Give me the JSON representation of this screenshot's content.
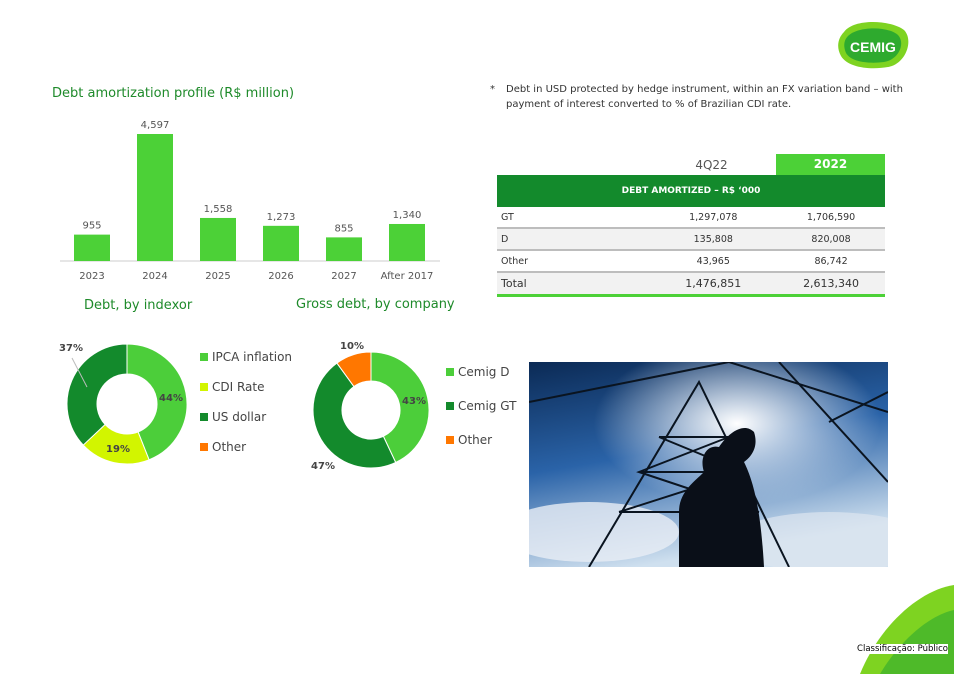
{
  "logo": {
    "text": "CEMIG"
  },
  "footnote": {
    "star": "*",
    "text": "Debt in USD protected by hedge instrument, within an FX variation band – with payment of interest converted to % of Brazilian CDI rate."
  },
  "classification": "Classificação: Público",
  "chart_data": [
    {
      "type": "bar",
      "title": "Debt amortization profile (R$ million)",
      "categories": [
        "2023",
        "2024",
        "2025",
        "2026",
        "2027",
        "After 2017"
      ],
      "values": [
        955,
        4597,
        1558,
        1273,
        855,
        1340
      ],
      "labels": [
        "955",
        "4,597",
        "1,558",
        "1,273",
        "855",
        "1,340"
      ],
      "color": "#4cd137"
    },
    {
      "type": "pie",
      "title": "Debt, by indexor",
      "donut": true,
      "slices": [
        {
          "name": "IPCA inflation",
          "value": 44,
          "color": "#4cce3a"
        },
        {
          "name": "CDI Rate",
          "value": 19,
          "color": "#d2f500"
        },
        {
          "name": "US dollar",
          "value": 37,
          "color": "#138a2c"
        },
        {
          "name": "Other",
          "value": 0,
          "color": "#ff7700"
        }
      ]
    },
    {
      "type": "pie",
      "title": "Gross debt, by company",
      "donut": true,
      "slices": [
        {
          "name": "Cemig D",
          "value": 43,
          "color": "#4cce3a"
        },
        {
          "name": "Cemig GT",
          "value": 47,
          "color": "#138a2c"
        },
        {
          "name": "Other",
          "value": 10,
          "color": "#ff7700"
        }
      ]
    }
  ],
  "table": {
    "headers": [
      "4Q22",
      "2022"
    ],
    "band": "DEBT AMORTIZED – R$ ‘000",
    "rows": [
      [
        "GT",
        "1,297,078",
        "1,706,590"
      ],
      [
        "D",
        "135,808",
        "820,008"
      ],
      [
        "Other",
        "43,965",
        "86,742"
      ],
      [
        "Total",
        "1,476,851",
        "2,613,340"
      ]
    ]
  }
}
